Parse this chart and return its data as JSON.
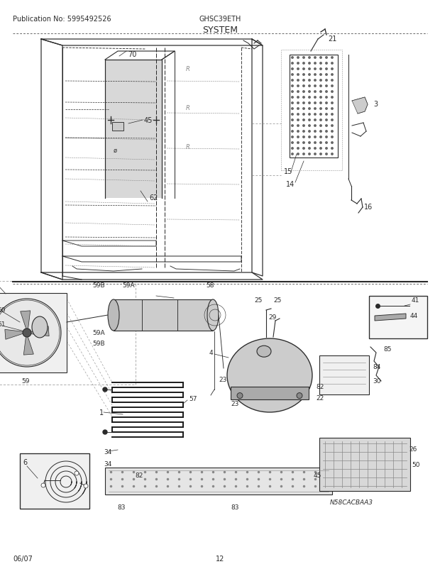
{
  "title": "SYSTEM",
  "pub_no": "Publication No: 5995492526",
  "model": "GHSC39ETH",
  "date": "06/07",
  "page": "12",
  "bg_color": "#ffffff",
  "line_color": "#2a2a2a",
  "gray1": "#888888",
  "gray2": "#aaaaaa",
  "gray3": "#cccccc",
  "gray4": "#555555",
  "figsize": [
    6.2,
    8.03
  ],
  "dpi": 100
}
